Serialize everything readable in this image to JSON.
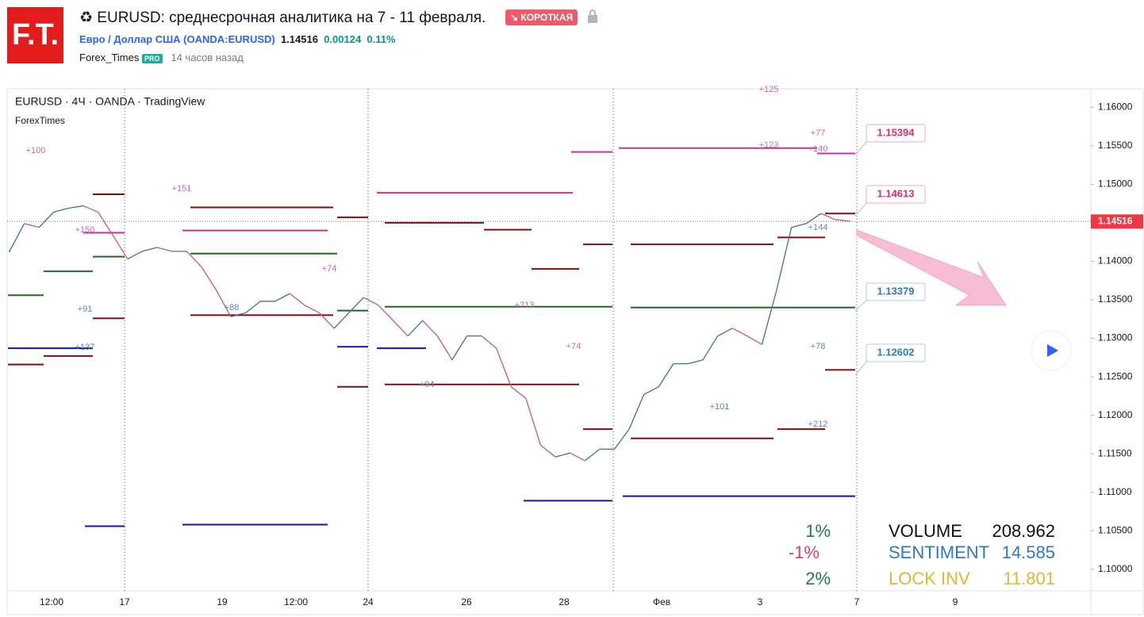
{
  "header": {
    "logo": "F.T.",
    "title": "♻ EURUSD: среднесрочная аналитика на 7 - 11 февраля.",
    "badge": "↘ КОРОТКАЯ",
    "symbol": "Евро / Доллар США (OANDA:EURUSD)",
    "price": 1.14516,
    "change": 0.00124,
    "change_pct": "0.11%",
    "author": "Forex_Times",
    "author_badge": "PRO",
    "time": "14 часов назад"
  },
  "chart_data": {
    "type": "line",
    "legend_title": "EURUSD · 4Ч · OANDA · TradingView",
    "watermark": "ForexTimes",
    "up_color": "#3d6fa6",
    "down_color": "#c0588f",
    "series": [
      {
        "name": "EURUSD",
        "values": [
          1.1413,
          1.1449,
          1.1444,
          1.1464,
          1.1469,
          1.1472,
          1.1464,
          1.1434,
          1.1403,
          1.1413,
          1.1418,
          1.1413,
          1.1413,
          1.1393,
          1.1363,
          1.1328,
          1.1333,
          1.1348,
          1.1348,
          1.1358,
          1.1343,
          1.1333,
          1.1313,
          1.1333,
          1.1353,
          1.1343,
          1.1323,
          1.1303,
          1.1323,
          1.1303,
          1.1272,
          1.1303,
          1.1303,
          1.1287,
          1.1237,
          1.1222,
          1.1161,
          1.1146,
          1.1151,
          1.1141,
          1.1156,
          1.1156,
          1.1182,
          1.1227,
          1.1237,
          1.1267,
          1.1267,
          1.1272,
          1.1303,
          1.1313,
          1.1303,
          1.1292,
          1.1363,
          1.1444,
          1.1449,
          1.1462,
          1.1454,
          1.1452
        ]
      }
    ],
    "ylim": [
      1.0972,
      1.1624
    ],
    "yticks": [
      {
        "value": 1.16,
        "label": "1.16000"
      },
      {
        "value": 1.155,
        "label": "1.15500"
      },
      {
        "value": 1.15,
        "label": "1.15000"
      },
      {
        "value": 1.145,
        "label": "1.14500"
      },
      {
        "value": 1.14,
        "label": "1.14000"
      },
      {
        "value": 1.135,
        "label": "1.13500"
      },
      {
        "value": 1.13,
        "label": "1.13000"
      },
      {
        "value": 1.125,
        "label": "1.12500"
      },
      {
        "value": 1.12,
        "label": "1.12000"
      },
      {
        "value": 1.115,
        "label": "1.11500"
      },
      {
        "value": 1.11,
        "label": "1.11000"
      },
      {
        "value": 1.105,
        "label": "1.10500"
      },
      {
        "value": 1.1,
        "label": "1.10000"
      }
    ],
    "xticks": [
      "12:00",
      "17",
      "19",
      "12:00",
      "24",
      "26",
      "28",
      "Фев",
      "3",
      "7",
      "9"
    ],
    "current_price": 1.14516,
    "levels": [
      {
        "value": 1.154,
        "color": "#c0359a"
      },
      {
        "value": 1.1547,
        "color": "#c0359a"
      },
      {
        "value": 1.1542,
        "color": "#c0359a"
      },
      {
        "value": 1.1489,
        "color": "#c0359a"
      },
      {
        "value": 1.144,
        "color": "#c0359a"
      },
      {
        "value": 1.1437,
        "color": "#c0359a"
      },
      {
        "value": 1.1462,
        "color": "#7a1010"
      },
      {
        "value": 1.1431,
        "color": "#7a1010"
      },
      {
        "value": 1.1422,
        "color": "#7a1010"
      },
      {
        "value": 1.1422,
        "color": "#7a1010"
      },
      {
        "value": 1.139,
        "color": "#7a1010"
      },
      {
        "value": 1.1441,
        "color": "#7a1010"
      },
      {
        "value": 1.145,
        "color": "#7a1010"
      },
      {
        "value": 1.147,
        "color": "#7a1010"
      },
      {
        "value": 1.1487,
        "color": "#7a1010"
      },
      {
        "value": 1.133,
        "color": "#7a1010"
      },
      {
        "value": 1.1326,
        "color": "#7a1010"
      },
      {
        "value": 1.1277,
        "color": "#7a1010"
      },
      {
        "value": 1.1266,
        "color": "#7a1010"
      },
      {
        "value": 1.124,
        "color": "#7a1010"
      },
      {
        "value": 1.1182,
        "color": "#7a1010"
      },
      {
        "value": 1.117,
        "color": "#7a1010"
      },
      {
        "value": 1.1182,
        "color": "#7a1010"
      },
      {
        "value": 1.1259,
        "color": "#7a1010"
      },
      {
        "value": 1.1237,
        "color": "#7a1010"
      },
      {
        "value": 1.1457,
        "color": "#7a1010"
      },
      {
        "value": 1.1341,
        "color": "#1d6b1d"
      },
      {
        "value": 1.134,
        "color": "#1d6b1d"
      },
      {
        "value": 1.141,
        "color": "#1d6b1d"
      },
      {
        "value": 1.1387,
        "color": "#1d6b1d"
      },
      {
        "value": 1.1356,
        "color": "#1d6b1d"
      },
      {
        "value": 1.1406,
        "color": "#1d6b1d"
      },
      {
        "value": 1.1336,
        "color": "#1d6b1d"
      },
      {
        "value": 1.1089,
        "color": "#15179a"
      },
      {
        "value": 1.1095,
        "color": "#15179a"
      },
      {
        "value": 1.1289,
        "color": "#15179a"
      },
      {
        "value": 1.1287,
        "color": "#15179a"
      },
      {
        "value": 1.1058,
        "color": "#15179a"
      },
      {
        "value": 1.1056,
        "color": "#15179a"
      },
      {
        "value": 1.1287,
        "color": "#15179a"
      }
    ],
    "annotations": [
      {
        "text": "+100",
        "color": "#c46ab8"
      },
      {
        "text": "+151",
        "color": "#c46ab8"
      },
      {
        "text": "+150",
        "color": "#c46ab8"
      },
      {
        "text": "+74",
        "color": "#c46ab8"
      },
      {
        "text": "+91",
        "color": "#5b86c0"
      },
      {
        "text": "+88",
        "color": "#5b86c0"
      },
      {
        "text": "+137",
        "color": "#5b86c0"
      },
      {
        "text": "+94",
        "color": "#5b86c0"
      },
      {
        "text": "+213",
        "color": "#c46ab8"
      },
      {
        "text": "+74",
        "color": "#c46ab8"
      },
      {
        "text": "+125",
        "color": "#c46ab8"
      },
      {
        "text": "+77",
        "color": "#c46ab8"
      },
      {
        "text": "+123",
        "color": "#c46ab8"
      },
      {
        "text": "+140",
        "color": "#c46ab8"
      },
      {
        "text": "+144",
        "color": "#5b86c0"
      },
      {
        "text": "+78",
        "color": "#5b86c0"
      },
      {
        "text": "+101",
        "color": "#5b86c0"
      },
      {
        "text": "+212",
        "color": "#5b86c0"
      }
    ],
    "price_tags": [
      {
        "value": 1.15394,
        "color": "#d6306e"
      },
      {
        "value": 1.14613,
        "color": "#d6306e"
      },
      {
        "value": 1.13379,
        "color": "#2f79c2"
      },
      {
        "value": 1.12602,
        "color": "#2f79c2"
      }
    ],
    "percents": [
      {
        "text": "1%",
        "color": "#1e7a52"
      },
      {
        "text": "-1%",
        "color": "#d0407a"
      },
      {
        "text": "2%",
        "color": "#1e7a52"
      }
    ],
    "stats": [
      {
        "label": "VOLUME",
        "value": 208.962,
        "color": "#111111"
      },
      {
        "label": "SENTIMENT",
        "value": 14.585,
        "color": "#2f79c2"
      },
      {
        "label": "LOCK INV",
        "value": 11.801,
        "color": "#e0b830"
      }
    ]
  }
}
